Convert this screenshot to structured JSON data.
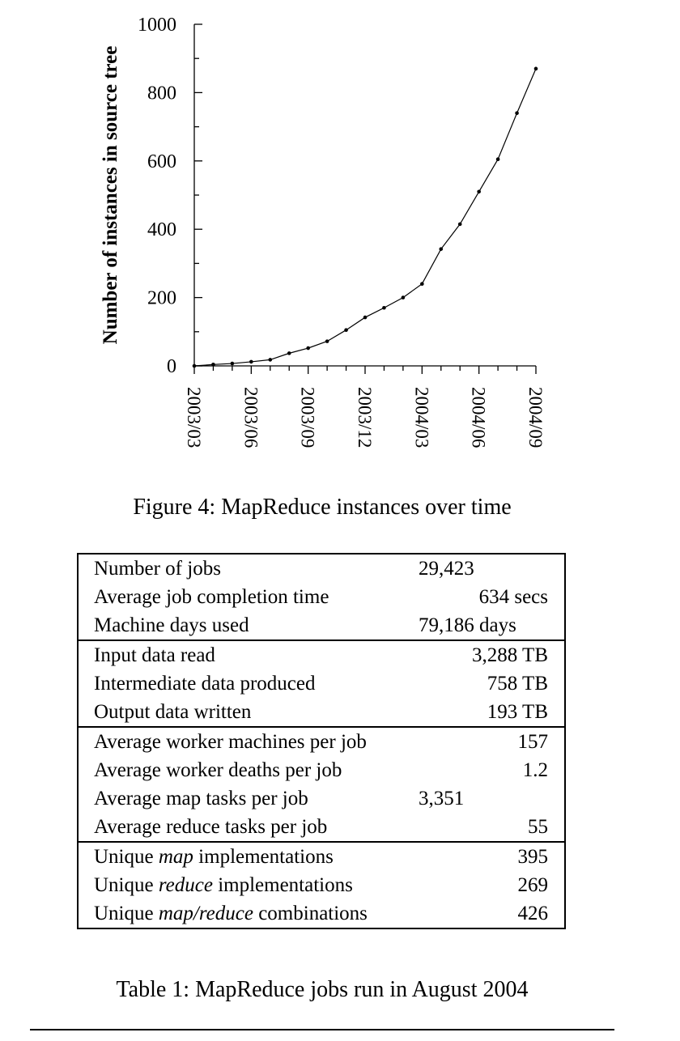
{
  "chart_data": {
    "type": "line",
    "title": "",
    "xlabel": "",
    "ylabel": "Number of instances in source tree",
    "ylim": [
      0,
      1000
    ],
    "yticks": [
      0,
      200,
      400,
      600,
      800,
      1000
    ],
    "xticks": [
      "2003/03",
      "2003/06",
      "2003/09",
      "2003/12",
      "2004/03",
      "2004/06",
      "2004/09"
    ],
    "xlim": [
      "2003/03",
      "2004/09"
    ],
    "grid": false,
    "x": [
      "2003/03",
      "2003/04",
      "2003/05",
      "2003/06",
      "2003/07",
      "2003/08",
      "2003/09",
      "2003/10",
      "2003/11",
      "2003/12",
      "2004/01",
      "2004/02",
      "2004/03",
      "2004/04",
      "2004/05",
      "2004/06",
      "2004/07",
      "2004/08",
      "2004/09"
    ],
    "series": [
      {
        "values": [
          0,
          4,
          7,
          12,
          18,
          37,
          52,
          72,
          105,
          142,
          170,
          200,
          240,
          342,
          415,
          510,
          605,
          740,
          870
        ]
      }
    ]
  },
  "figure_caption": "Figure 4: MapReduce instances over time",
  "table": {
    "groups": [
      {
        "rows": [
          {
            "label": [
              "Number of jobs"
            ],
            "value": "29,423",
            "offset": 0
          },
          {
            "label": [
              "Average job completion time"
            ],
            "value": "634 secs",
            "offset": 1
          },
          {
            "label": [
              "Machine days used"
            ],
            "value": "79,186 days",
            "offset": 0
          }
        ]
      },
      {
        "rows": [
          {
            "label": [
              "Input data read"
            ],
            "value": "3,288 TB",
            "offset": 1
          },
          {
            "label": [
              "Intermediate data produced"
            ],
            "value": "758 TB",
            "offset": 1
          },
          {
            "label": [
              "Output data written"
            ],
            "value": "193 TB",
            "offset": 1
          }
        ]
      },
      {
        "rows": [
          {
            "label": [
              "Average worker machines per job"
            ],
            "value": "157",
            "offset": 1
          },
          {
            "label": [
              "Average worker deaths per job"
            ],
            "value": "1.2",
            "offset": 1
          },
          {
            "label": [
              "Average map tasks per job"
            ],
            "value": "3,351",
            "offset": 0
          },
          {
            "label": [
              "Average reduce tasks per job"
            ],
            "value": "55",
            "offset": 1
          }
        ]
      },
      {
        "rows": [
          {
            "label": [
              "Unique ",
              "map",
              " implementations"
            ],
            "value": "395",
            "offset": 1
          },
          {
            "label": [
              "Unique ",
              "reduce",
              " implementations"
            ],
            "value": "269",
            "offset": 1
          },
          {
            "label": [
              "Unique ",
              "map/reduce",
              " combinations"
            ],
            "value": "426",
            "offset": 1
          }
        ]
      }
    ]
  },
  "table_caption": "Table 1: MapReduce jobs run in August 2004"
}
